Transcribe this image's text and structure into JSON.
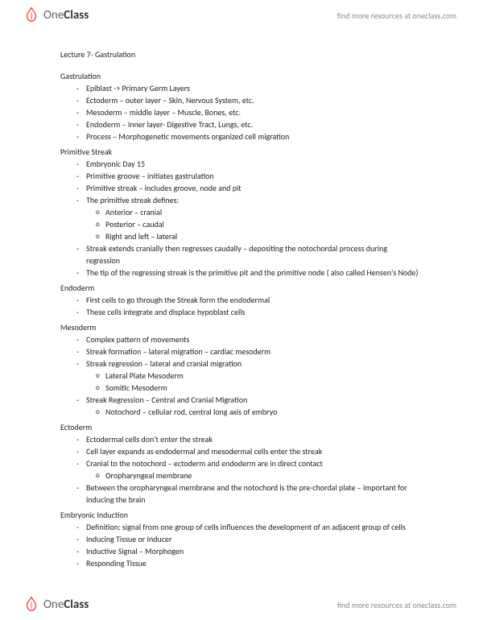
{
  "brand": {
    "name_light": "One",
    "name_bold": "Class",
    "tagline": "find more resources at oneclass.com"
  },
  "title": "Lecture 7- Gastrulation",
  "sections": [
    {
      "heading": "Gastrulation",
      "items": [
        {
          "text": "Epiblast -> Primary Germ Layers"
        },
        {
          "text": "Ectoderm – outer layer – Skin, Nervous System, etc."
        },
        {
          "text": "Mesoderm – middle layer – Muscle, Bones, etc."
        },
        {
          "text": "Endoderm – Inner layer- Digestive Tract, Lungs, etc."
        },
        {
          "text": "Process – Morphogenetic movements organized cell migration"
        }
      ]
    },
    {
      "heading": "Primitive Streak",
      "items": [
        {
          "text": "Embryonic Day 15"
        },
        {
          "text": "Primitive groove – initiates gastrulation"
        },
        {
          "text": "Primitive streak – includes groove, node and pit"
        },
        {
          "text": "The primitive streak defines:",
          "sub": [
            {
              "text": "Anterior – cranial"
            },
            {
              "text": "Posterior – caudal"
            },
            {
              "text": "Right and left – lateral"
            }
          ]
        },
        {
          "text": "Streak extends cranially then regresses caudally – depositing the notochordal process during regression"
        },
        {
          "text": "The tip of the regressing streak is the primitive pit and the primitive node ( also called Hensen's Node)"
        }
      ]
    },
    {
      "heading": "Endoderm",
      "items": [
        {
          "text": "First cells to go through the Streak form the endodermal"
        },
        {
          "text": "These cells integrate and displace hypoblast cells"
        }
      ]
    },
    {
      "heading": "Mesoderm",
      "items": [
        {
          "text": "Complex pattern of movements"
        },
        {
          "text": "Streak formation – lateral migration – cardiac mesoderm"
        },
        {
          "text": "Streak regression – lateral and cranial migration",
          "sub": [
            {
              "text": "Lateral Plate Mesoderm"
            },
            {
              "text": "Somitic Mesoderm"
            }
          ]
        },
        {
          "text": "Streak Regression – Central and Cranial Migration",
          "sub": [
            {
              "text": "Notochord – cellular rod, central long axis of embryo"
            }
          ]
        }
      ]
    },
    {
      "heading": "Ectoderm",
      "items": [
        {
          "text": "Ectodermal cells don't enter the streak"
        },
        {
          "text": "Cell layer expands as endodermal and mesodermal cells enter the streak"
        },
        {
          "text": "Cranial to the notochord – ectoderm and endoderm are in direct contact",
          "sub": [
            {
              "text": "Oropharyngeal membrane"
            }
          ]
        },
        {
          "text": "Between the oropharyngeal membrane and the notochord is the pre-chordal plate – important for inducing the brain"
        }
      ]
    },
    {
      "heading": "Embryonic Induction",
      "items": [
        {
          "text": "Definition: signal from one group of cells influences the development of an adjacent group of cells"
        },
        {
          "text": "Inducing Tissue or Inducer"
        },
        {
          "text": "Inductive Signal – Morphogen"
        },
        {
          "text": "Responding Tissue"
        }
      ]
    }
  ]
}
